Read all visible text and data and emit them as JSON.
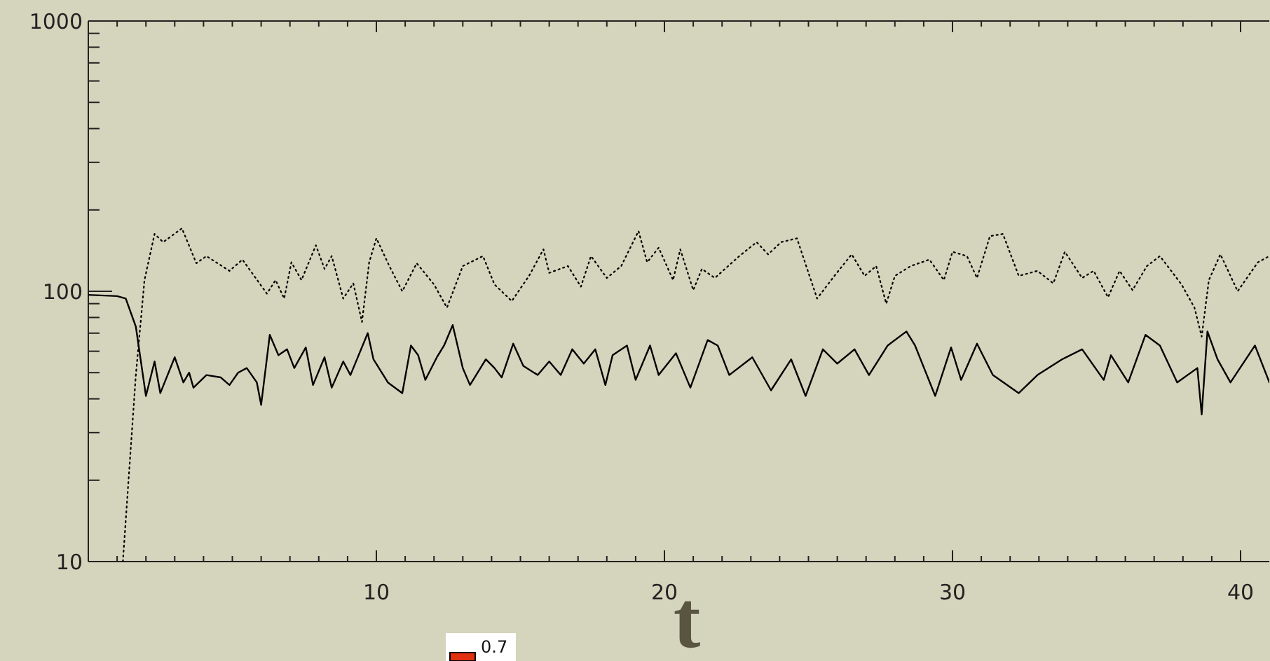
{
  "chart_data": {
    "type": "line",
    "xlabel": "t",
    "log": "y",
    "xlim": [
      0,
      41
    ],
    "ylim": [
      10,
      1000
    ],
    "xticks": [
      {
        "value": 1,
        "label": null
      },
      {
        "value": 2,
        "label": null
      },
      {
        "value": 3,
        "label": null
      },
      {
        "value": 4,
        "label": null
      },
      {
        "value": 5,
        "label": null
      },
      {
        "value": 6,
        "label": null
      },
      {
        "value": 7,
        "label": null
      },
      {
        "value": 8,
        "label": null
      },
      {
        "value": 9,
        "label": null
      },
      10,
      {
        "value": 11,
        "label": null
      },
      {
        "value": 12,
        "label": null
      },
      {
        "value": 13,
        "label": null
      },
      {
        "value": 14,
        "label": null
      },
      {
        "value": 15,
        "label": null
      },
      {
        "value": 16,
        "label": null
      },
      {
        "value": 17,
        "label": null
      },
      {
        "value": 18,
        "label": null
      },
      {
        "value": 19,
        "label": null
      },
      20,
      {
        "value": 21,
        "label": null
      },
      {
        "value": 22,
        "label": null
      },
      {
        "value": 23,
        "label": null
      },
      {
        "value": 24,
        "label": null
      },
      {
        "value": 25,
        "label": null
      },
      {
        "value": 26,
        "label": null
      },
      {
        "value": 27,
        "label": null
      },
      {
        "value": 28,
        "label": null
      },
      {
        "value": 29,
        "label": null
      },
      30,
      {
        "value": 31,
        "label": null
      },
      {
        "value": 32,
        "label": null
      },
      {
        "value": 33,
        "label": null
      },
      {
        "value": 34,
        "label": null
      },
      {
        "value": 35,
        "label": null
      },
      {
        "value": 36,
        "label": null
      },
      {
        "value": 37,
        "label": null
      },
      {
        "value": 38,
        "label": null
      },
      {
        "value": 39,
        "label": null
      },
      40
    ],
    "yticks": [
      10,
      {
        "value": 20,
        "label": null
      },
      {
        "value": 30,
        "label": null
      },
      {
        "value": 40,
        "label": null
      },
      {
        "value": 50,
        "label": null
      },
      {
        "value": 60,
        "label": null
      },
      {
        "value": 70,
        "label": null
      },
      {
        "value": 80,
        "label": null
      },
      {
        "value": 90,
        "label": null
      },
      100,
      {
        "value": 200,
        "label": null
      },
      {
        "value": 300,
        "label": null
      },
      {
        "value": 400,
        "label": null
      },
      {
        "value": 500,
        "label": null
      },
      {
        "value": 600,
        "label": null
      },
      {
        "value": 700,
        "label": null
      },
      {
        "value": 800,
        "label": null
      },
      {
        "value": 900,
        "label": null
      },
      1000
    ],
    "grid": false,
    "marker": "none",
    "annotations": [
      "0.7"
    ],
    "series": [
      {
        "color": "#000000",
        "line_style": "solid",
        "x": [
          0,
          1.0,
          1.3,
          1.65,
          2.0,
          2.3,
          2.5,
          3.0,
          3.3,
          3.5,
          3.65,
          4.1,
          4.6,
          4.9,
          5.2,
          5.5,
          5.85,
          6.0,
          6.3,
          6.6,
          6.9,
          7.15,
          7.55,
          7.8,
          8.2,
          8.45,
          8.85,
          9.1,
          9.7,
          9.9,
          10.4,
          10.9,
          11.2,
          11.45,
          11.7,
          12.1,
          12.35,
          12.65,
          13.0,
          13.25,
          13.8,
          14.1,
          14.35,
          14.75,
          15.1,
          15.6,
          16.0,
          16.4,
          16.8,
          17.2,
          17.6,
          17.95,
          18.2,
          18.7,
          19.0,
          19.5,
          19.8,
          20.4,
          20.9,
          21.5,
          21.85,
          22.25,
          23.05,
          23.7,
          24.4,
          24.9,
          25.5,
          26.0,
          26.6,
          27.1,
          27.75,
          28.4,
          28.7,
          29.4,
          29.95,
          30.3,
          30.85,
          31.4,
          32.3,
          32.95,
          33.8,
          34.5,
          35.25,
          35.5,
          36.1,
          36.7,
          37.2,
          37.8,
          38.5,
          38.65,
          38.85,
          39.2,
          39.65,
          40.5,
          41.0
        ],
        "values": [
          97,
          96,
          94,
          74,
          41,
          55,
          42,
          57,
          46,
          50,
          44,
          49,
          48,
          45,
          50,
          52,
          46,
          38,
          69,
          58,
          61,
          52,
          62,
          45,
          57,
          44,
          55,
          49,
          70,
          56,
          46,
          42,
          63,
          58,
          47,
          57,
          63,
          75,
          52,
          45,
          56,
          52,
          48,
          64,
          53,
          49,
          55,
          49,
          61,
          54,
          61,
          45,
          58,
          63,
          47,
          63,
          49,
          59,
          44,
          66,
          63,
          49,
          57,
          43,
          56,
          41,
          61,
          54,
          61,
          49,
          63,
          71,
          63,
          41,
          62,
          47,
          64,
          49,
          42,
          49,
          56,
          61,
          47,
          58,
          46,
          69,
          63,
          46,
          52,
          35,
          71,
          56,
          46,
          63,
          46
        ]
      },
      {
        "color": "#000000",
        "line_style": "dotted",
        "x": [
          1.2,
          1.65,
          1.95,
          2.3,
          2.6,
          3.25,
          3.75,
          4.1,
          4.9,
          5.35,
          6.2,
          6.5,
          6.8,
          7.05,
          7.4,
          7.9,
          8.2,
          8.45,
          8.85,
          9.2,
          9.5,
          9.75,
          10.0,
          10.45,
          10.9,
          11.4,
          12.0,
          12.45,
          13.0,
          13.7,
          14.1,
          14.7,
          15.3,
          15.8,
          16.0,
          16.65,
          17.1,
          17.45,
          18.0,
          18.5,
          19.1,
          19.4,
          19.8,
          20.3,
          20.55,
          21.0,
          21.3,
          21.75,
          22.6,
          23.2,
          23.6,
          24.05,
          24.6,
          25.3,
          25.9,
          26.5,
          26.95,
          27.35,
          27.7,
          28.0,
          28.55,
          29.2,
          29.7,
          30.0,
          30.5,
          30.85,
          31.3,
          31.75,
          32.3,
          32.95,
          33.5,
          33.9,
          34.5,
          34.9,
          35.4,
          35.8,
          36.25,
          36.75,
          37.2,
          37.95,
          38.4,
          38.65,
          38.9,
          39.3,
          39.9,
          40.6,
          41.0
        ],
        "values": [
          10,
          49,
          110,
          163,
          152,
          171,
          127,
          135,
          119,
          131,
          98,
          110,
          94,
          128,
          110,
          148,
          121,
          135,
          94,
          107,
          77,
          128,
          157,
          124,
          100,
          127,
          106,
          87,
          124,
          135,
          106,
          92,
          114,
          143,
          117,
          124,
          104,
          135,
          112,
          124,
          167,
          128,
          145,
          110,
          143,
          101,
          121,
          112,
          135,
          152,
          137,
          152,
          157,
          94,
          114,
          137,
          114,
          124,
          90,
          114,
          124,
          131,
          110,
          140,
          135,
          112,
          160,
          163,
          114,
          119,
          107,
          140,
          112,
          119,
          95,
          119,
          101,
          124,
          135,
          106,
          87,
          68,
          110,
          137,
          100,
          128,
          135
        ]
      }
    ]
  }
}
